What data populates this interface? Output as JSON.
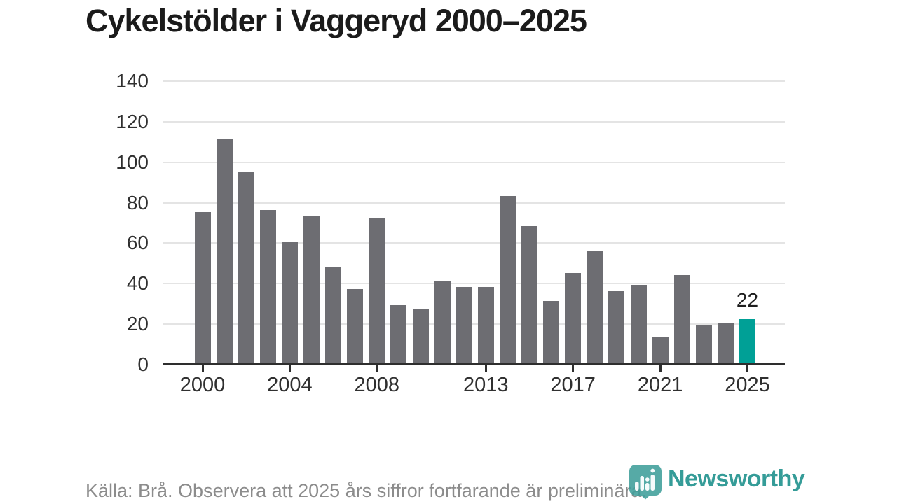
{
  "title": "Cykelstölder i Vaggeryd 2000–2025",
  "chart_data": {
    "type": "bar",
    "title": "Cykelstölder i Vaggeryd 2000–2025",
    "categories": [
      2000,
      2001,
      2002,
      2003,
      2004,
      2005,
      2006,
      2007,
      2008,
      2009,
      2010,
      2011,
      2012,
      2013,
      2014,
      2015,
      2016,
      2017,
      2018,
      2019,
      2020,
      2021,
      2022,
      2023,
      2024,
      2025
    ],
    "values": [
      75,
      111,
      95,
      76,
      60,
      73,
      48,
      37,
      72,
      29,
      27,
      41,
      38,
      38,
      83,
      68,
      31,
      45,
      56,
      36,
      39,
      13,
      44,
      19,
      20,
      22
    ],
    "xlabel": "",
    "ylabel": "",
    "ylim": [
      0,
      140
    ],
    "yticks": [
      0,
      20,
      40,
      60,
      80,
      100,
      120,
      140
    ],
    "xticks": [
      2000,
      2004,
      2008,
      2013,
      2017,
      2021,
      2025
    ],
    "grid": true,
    "legend": "none",
    "bar_color": "#6d6d72",
    "highlight_year": 2025,
    "highlight_color": "#00a096",
    "highlight_value_label": "22"
  },
  "footer": {
    "source_text": "Källa: Brå. Observera att 2025 års siffror fortfarande är preliminära."
  },
  "logo": {
    "wordmark": "Newsworthy",
    "color": "#359c98",
    "icon": "newsworthy-bubble-chart-icon"
  }
}
